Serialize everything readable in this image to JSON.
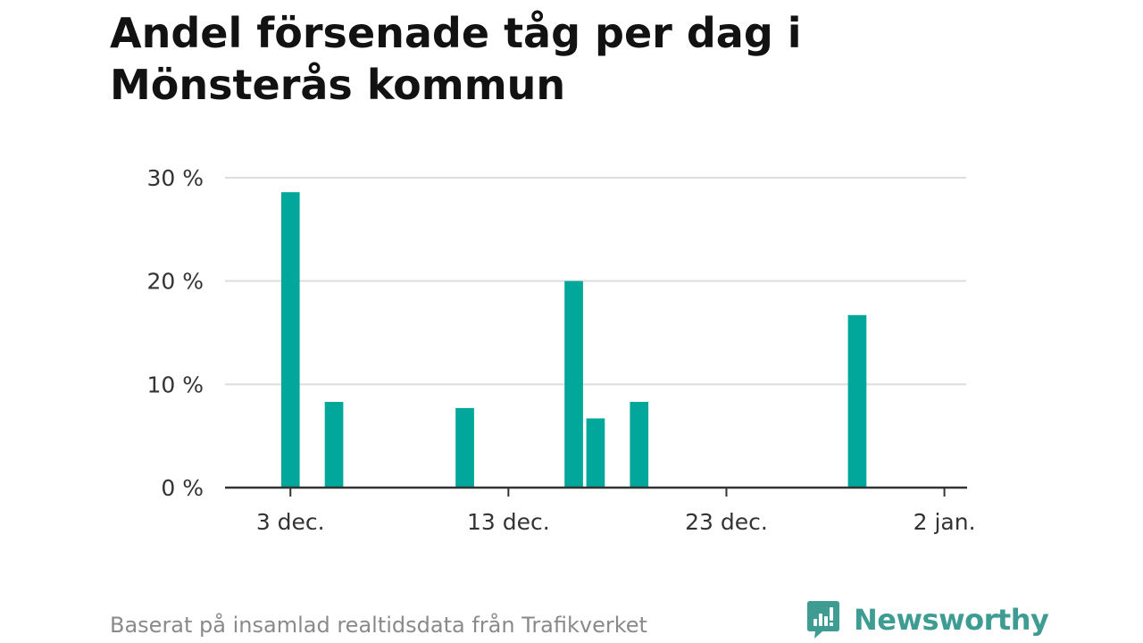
{
  "title": "Andel försenade tåg per dag i Mönsterås kommun",
  "footer": {
    "source_note": "Baserat på insamlad realtidsdata från Trafikverket",
    "brand_name": "Newsworthy",
    "brand_icon": "bar-chart-speech-bubble-icon"
  },
  "colors": {
    "bar": "#00a79a",
    "grid": "#dddddd",
    "axis": "#333333",
    "text": "#333333",
    "brand": "#3e9c93"
  },
  "chart_data": {
    "type": "bar",
    "title": "Andel försenade tåg per dag i Mönsterås kommun",
    "xlabel": "",
    "ylabel": "",
    "x_axis": {
      "type": "date",
      "min": "2019-11-30",
      "max": "2020-01-03",
      "ticks": [
        {
          "date": "2019-12-03",
          "label": "3 dec."
        },
        {
          "date": "2019-12-13",
          "label": "13 dec."
        },
        {
          "date": "2019-12-23",
          "label": "23 dec."
        },
        {
          "date": "2020-01-02",
          "label": "2 jan."
        }
      ]
    },
    "y_axis": {
      "min": 0,
      "max": 30,
      "unit": "%",
      "ticks": [
        {
          "value": 0,
          "label": "0 %"
        },
        {
          "value": 10,
          "label": "10 %"
        },
        {
          "value": 20,
          "label": "20 %"
        },
        {
          "value": 30,
          "label": "30 %"
        }
      ]
    },
    "grid": true,
    "legend": "none",
    "series": [
      {
        "points": [
          {
            "date": "2019-12-03",
            "value": 28.6
          },
          {
            "date": "2019-12-05",
            "value": 8.3
          },
          {
            "date": "2019-12-11",
            "value": 7.7
          },
          {
            "date": "2019-12-16",
            "value": 20.0
          },
          {
            "date": "2019-12-17",
            "value": 6.7
          },
          {
            "date": "2019-12-19",
            "value": 8.3
          },
          {
            "date": "2019-12-29",
            "value": 16.7
          }
        ]
      }
    ]
  }
}
